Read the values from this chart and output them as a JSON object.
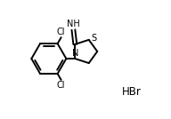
{
  "bg_color": "#ffffff",
  "line_color": "#000000",
  "line_width": 1.4,
  "font_size_label": 7.0,
  "font_size_hbr": 8.5,
  "HBr_text": "HBr",
  "NH_text": "NH",
  "N_text": "N",
  "S_text": "S",
  "Cl_top_text": "Cl",
  "Cl_bot_text": "Cl",
  "figsize": [
    1.92,
    1.34
  ],
  "dpi": 100,
  "xlim": [
    0,
    10
  ],
  "ylim": [
    0,
    7
  ]
}
